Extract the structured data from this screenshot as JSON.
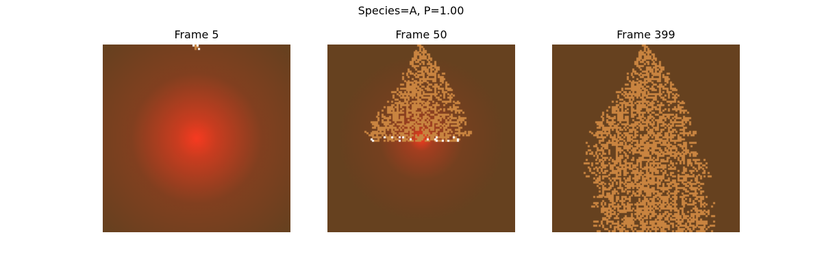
{
  "figure": {
    "suptitle": "Species=A, P=1.00",
    "colors": {
      "background": "#66411f",
      "aggregate": "#c98440",
      "particle": "#ffffff",
      "source_glow": "#ff3a20"
    },
    "panels": [
      {
        "title": "Frame 5",
        "frame": 5,
        "growth": 0.03,
        "show_glow": true,
        "glow_strength": 1.0
      },
      {
        "title": "Frame 50",
        "frame": 50,
        "growth": 0.52,
        "show_glow": true,
        "glow_strength": 0.55
      },
      {
        "title": "Frame 399",
        "frame": 399,
        "growth": 1.0,
        "show_glow": false,
        "glow_strength": 0.0
      }
    ]
  }
}
